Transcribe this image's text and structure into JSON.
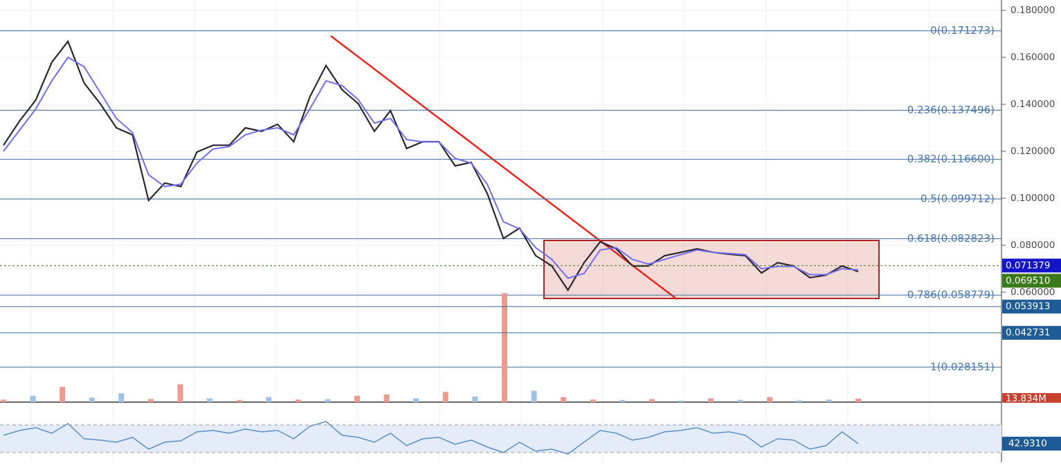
{
  "chart_data": {
    "type": "line",
    "ylim": [
      0.01324,
      0.18441
    ],
    "yticks": [
      {
        "value": 0.18,
        "label": "0.180000"
      },
      {
        "value": 0.16,
        "label": "0.160000"
      },
      {
        "value": 0.14,
        "label": "0.140000"
      },
      {
        "value": 0.12,
        "label": "0.120000"
      },
      {
        "value": 0.1,
        "label": "0.100000"
      },
      {
        "value": 0.08,
        "label": "0.080000"
      },
      {
        "value": 0.06,
        "label": "0.060000"
      }
    ],
    "fib_levels": [
      {
        "value": 0.171273,
        "label": "0(0.171273)"
      },
      {
        "value": 0.137496,
        "label": "0.236(0.137496)"
      },
      {
        "value": 0.1166,
        "label": "0.382(0.116600)"
      },
      {
        "value": 0.099712,
        "label": "0.5(0.099712)"
      },
      {
        "value": 0.082823,
        "label": "0.618(0.082823)"
      },
      {
        "value": 0.058779,
        "label": "0.786(0.058779)"
      },
      {
        "value": 0.028151,
        "label": "1(0.028151)"
      }
    ],
    "series": [
      {
        "color": "#2b2530",
        "values": [
          0.1226,
          0.1329,
          0.1418,
          0.1579,
          0.1668,
          0.1491,
          0.1403,
          0.13,
          0.127,
          0.0991,
          0.1065,
          0.105,
          0.1197,
          0.1226,
          0.1226,
          0.13,
          0.1285,
          0.1315,
          0.1241,
          0.1432,
          0.1565,
          0.1462,
          0.1403,
          0.1285,
          0.1373,
          0.1212,
          0.1241,
          0.1241,
          0.1138,
          0.1153,
          0.102,
          0.0829,
          0.0873,
          0.0756,
          0.0712,
          0.0609,
          0.0726,
          0.0815,
          0.0785,
          0.0712,
          0.0712,
          0.0756,
          0.077,
          0.0785,
          0.077,
          0.0762,
          0.0756,
          0.0682,
          0.0726,
          0.0712,
          0.0662,
          0.0673,
          0.0712,
          0.0688
        ]
      },
      {
        "color": "#6f6ef0",
        "values": [
          0.12,
          0.129,
          0.138,
          0.15,
          0.16,
          0.156,
          0.145,
          0.134,
          0.128,
          0.11,
          0.105,
          0.106,
          0.115,
          0.121,
          0.122,
          0.127,
          0.129,
          0.13,
          0.127,
          0.138,
          0.15,
          0.148,
          0.142,
          0.132,
          0.134,
          0.125,
          0.124,
          0.124,
          0.117,
          0.115,
          0.106,
          0.09,
          0.087,
          0.079,
          0.074,
          0.066,
          0.068,
          0.078,
          0.079,
          0.074,
          0.072,
          0.074,
          0.076,
          0.078,
          0.077,
          0.0765,
          0.076,
          0.07,
          0.071,
          0.071,
          0.0675,
          0.0675,
          0.07,
          0.0695
        ]
      }
    ],
    "price_badges": [
      {
        "value": 0.071379,
        "color": "#1414c8"
      },
      {
        "value": 0.06951,
        "label": "0.069510",
        "color": "#3a7a1a"
      },
      {
        "value": 0.053913,
        "color": "#1f5c96"
      },
      {
        "value": 0.042731,
        "color": "#1f5c96"
      }
    ],
    "volume": {
      "vlim": [
        0,
        450000000
      ],
      "values": [
        10000000,
        25000000,
        60000000,
        18000000,
        35000000,
        12000000,
        70000000,
        15000000,
        8000000,
        20000000,
        10000000,
        12000000,
        25000000,
        30000000,
        15000000,
        40000000,
        22000000,
        430000000,
        45000000,
        20000000,
        10000000,
        8000000,
        12000000,
        6000000,
        15000000,
        9000000,
        20000000,
        7000000,
        10000000,
        13834000
      ],
      "colors": [
        "#ef9a8e",
        "#9ec3e6",
        "#ef9a8e",
        "#9ec3e6",
        "#9ec3e6",
        "#ef9a8e",
        "#ef9a8e",
        "#9ec3e6",
        "#ef9a8e",
        "#9ec3e6",
        "#ef9a8e",
        "#9ec3e6",
        "#ef9a8e",
        "#ef9a8e",
        "#9ec3e6",
        "#ef9a8e",
        "#9ec3e6",
        "#ef9a8e",
        "#9ec3e6",
        "#ef9a8e",
        "#ef9a8e",
        "#9ec3e6",
        "#ef9a8e",
        "#9ec3e6",
        "#ef9a8e",
        "#9ec3e6",
        "#ef9a8e",
        "#9ec3e6",
        "#9ec3e6",
        "#ef9a8e"
      ],
      "badge": {
        "value": 13834000,
        "label": "13.834M",
        "color": "#c8402e"
      }
    },
    "rsi": {
      "ylim": [
        16,
        100
      ],
      "bands": [
        70,
        30
      ],
      "color": "#5b8ec7",
      "values": [
        55,
        62,
        66,
        58,
        72,
        50,
        48,
        45,
        52,
        35,
        45,
        47,
        60,
        62,
        58,
        64,
        60,
        62,
        50,
        68,
        75,
        55,
        52,
        45,
        58,
        40,
        50,
        52,
        42,
        48,
        38,
        30,
        45,
        32,
        35,
        28,
        45,
        62,
        58,
        48,
        52,
        60,
        62,
        66,
        58,
        60,
        55,
        38,
        50,
        48,
        35,
        40,
        60,
        42.931
      ],
      "badge": {
        "value": 42.931,
        "label": "42.9310",
        "color": "#1f5c96"
      }
    }
  }
}
